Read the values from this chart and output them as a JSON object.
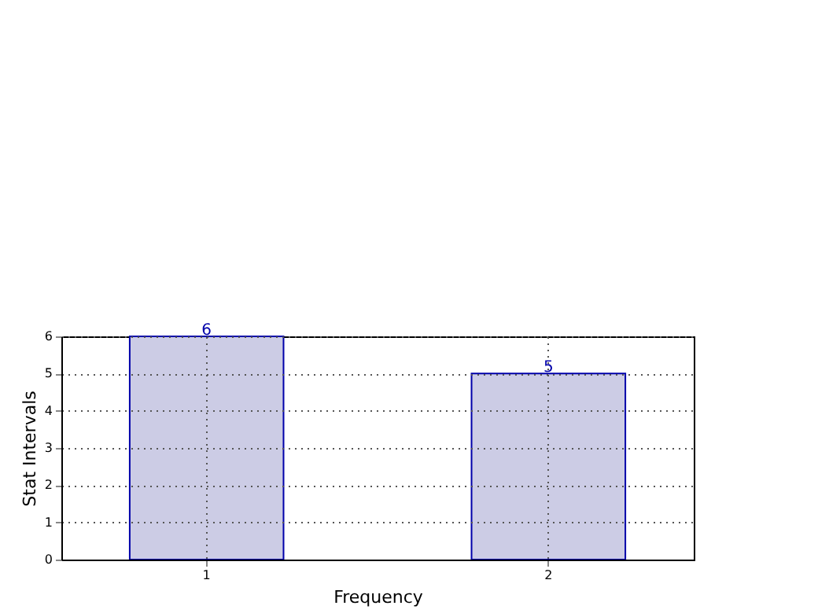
{
  "chart_data": {
    "type": "bar",
    "xlabel": "Frequency",
    "ylabel": "Stat Intervals",
    "categories": [
      "1",
      "2"
    ],
    "values": [
      6,
      5
    ],
    "color": "#ccccE5",
    "ylim": [
      0,
      6
    ],
    "yticks": [
      0,
      1,
      2,
      3,
      4,
      5,
      6
    ],
    "grid": true,
    "data_labels": true
  }
}
